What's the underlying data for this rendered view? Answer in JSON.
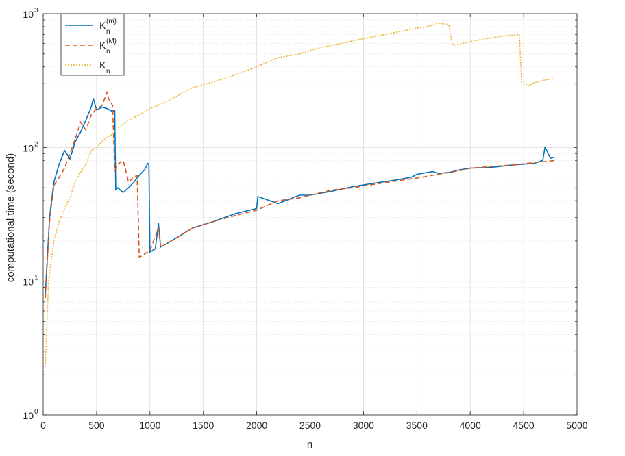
{
  "chart_data": {
    "type": "line",
    "title": "",
    "xlabel": "n",
    "ylabel": "computational time (second)",
    "xlim": [
      0,
      5000
    ],
    "ylim": [
      1,
      1000
    ],
    "yscale": "log",
    "grid": true,
    "minor_grid": true,
    "legend_position": "top-left",
    "x_ticks": [
      0,
      500,
      1000,
      1500,
      2000,
      2500,
      3000,
      3500,
      4000,
      4500,
      5000
    ],
    "x_tick_labels": [
      "0",
      "500",
      "1000",
      "1500",
      "2000",
      "2500",
      "3000",
      "3500",
      "4000",
      "4500",
      "5000"
    ],
    "y_ticks": [
      1,
      10,
      100,
      1000
    ],
    "y_tick_labels": [
      {
        "base": "10",
        "exp": "0"
      },
      {
        "base": "10",
        "exp": "1"
      },
      {
        "base": "10",
        "exp": "2"
      },
      {
        "base": "10",
        "exp": "3"
      }
    ],
    "series": [
      {
        "legend": {
          "main": "K",
          "sub": "n",
          "sup": "(m)"
        },
        "color": "#0072BD",
        "style": "solid",
        "x": [
          20,
          60,
          100,
          150,
          200,
          250,
          300,
          350,
          400,
          450,
          470,
          500,
          550,
          600,
          650,
          670,
          680,
          700,
          750,
          800,
          850,
          900,
          950,
          980,
          990,
          1000,
          1050,
          1080,
          1100,
          1200,
          1400,
          1600,
          1800,
          2000,
          2010,
          2200,
          2400,
          2500,
          2700,
          2900,
          3100,
          3300,
          3450,
          3500,
          3650,
          3700,
          3800,
          3900,
          4000,
          4200,
          4400,
          4600,
          4680,
          4700,
          4750,
          4780
        ],
        "y": [
          8,
          30,
          55,
          75,
          95,
          82,
          110,
          130,
          160,
          200,
          232,
          190,
          200,
          195,
          185,
          190,
          48,
          50,
          46,
          50,
          55,
          62,
          68,
          76,
          75,
          16.5,
          17.5,
          27,
          18,
          20,
          25,
          28,
          32,
          35,
          43,
          38,
          44,
          44,
          47,
          51,
          54,
          57,
          60,
          63,
          66,
          64,
          65,
          68,
          70,
          71,
          74,
          76,
          80,
          101,
          83,
          84
        ]
      },
      {
        "legend": {
          "main": "K",
          "sub": "n",
          "sup": "(M)"
        },
        "color": "#D95319",
        "style": "dashed",
        "x": [
          20,
          60,
          100,
          150,
          200,
          250,
          300,
          350,
          400,
          450,
          500,
          550,
          600,
          610,
          650,
          670,
          700,
          750,
          800,
          850,
          880,
          900,
          950,
          1000,
          1080,
          1100,
          1200,
          1400,
          1600,
          1800,
          2000,
          2200,
          2400,
          2700,
          2900,
          3100,
          3300,
          3500,
          3700,
          3800,
          3900,
          4000,
          4200,
          4400,
          4600,
          4800
        ],
        "y": [
          7.5,
          28,
          52,
          60,
          70,
          90,
          115,
          155,
          135,
          175,
          195,
          205,
          260,
          235,
          205,
          67,
          75,
          80,
          55,
          60,
          62,
          15,
          16,
          17,
          25,
          18,
          20,
          25,
          28,
          31,
          34,
          40,
          42,
          48,
          50,
          53,
          56,
          59,
          63,
          65,
          67,
          70,
          72,
          74,
          77,
          80
        ]
      },
      {
        "legend": {
          "main": "K",
          "sub": "n",
          "sup": ""
        },
        "color": "#EDB120",
        "style": "dotted",
        "x": [
          20,
          50,
          100,
          150,
          200,
          250,
          300,
          350,
          400,
          450,
          500,
          550,
          600,
          650,
          700,
          800,
          900,
          1000,
          1100,
          1200,
          1400,
          1600,
          1800,
          2000,
          2200,
          2400,
          2600,
          2800,
          3000,
          3200,
          3400,
          3500,
          3600,
          3700,
          3800,
          3830,
          3850,
          4000,
          4100,
          4200,
          4300,
          4400,
          4460,
          4480,
          4500,
          4550,
          4600,
          4650,
          4700,
          4780
        ],
        "y": [
          2.3,
          10,
          20,
          28,
          35,
          42,
          55,
          65,
          75,
          95,
          100,
          110,
          120,
          125,
          140,
          160,
          175,
          195,
          210,
          230,
          280,
          310,
          350,
          400,
          470,
          500,
          560,
          600,
          650,
          700,
          750,
          780,
          800,
          850,
          830,
          600,
          580,
          620,
          640,
          660,
          680,
          690,
          700,
          310,
          300,
          290,
          305,
          310,
          320,
          325
        ]
      }
    ]
  }
}
